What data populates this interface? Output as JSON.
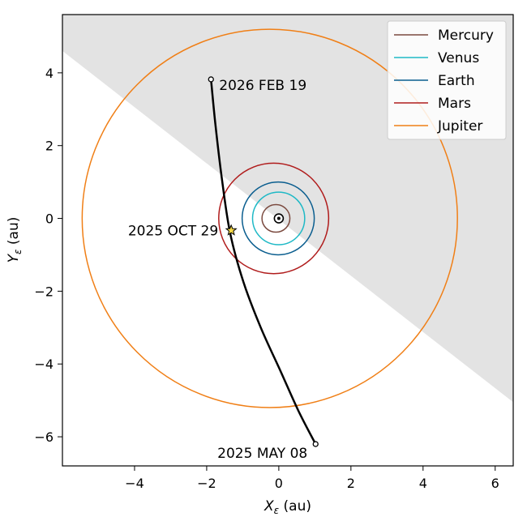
{
  "chart_data": {
    "type": "scatter",
    "title": "",
    "xlabel": "X",
    "xlabel_sub": "ε",
    "xlabel_unit": " (au)",
    "ylabel": "Y",
    "ylabel_sub": "ε",
    "ylabel_unit": " (au)",
    "xlim": [
      -6.0,
      6.5
    ],
    "ylim": [
      -6.8,
      5.6
    ],
    "xticks": [
      -4,
      -2,
      0,
      2,
      4,
      6
    ],
    "yticks": [
      -6,
      -4,
      -2,
      0,
      2,
      4
    ],
    "xtick_labels": [
      "−4",
      "−2",
      "0",
      "2",
      "4",
      "6"
    ],
    "ytick_labels": [
      "−6",
      "−4",
      "−2",
      "0",
      "2",
      "4"
    ],
    "grid": false,
    "legend_position": "top-right",
    "shaded_region": {
      "color": "#e3e3e3",
      "boundary_line": [
        [
          -6.0,
          4.6
        ],
        [
          6.5,
          -5.05
        ]
      ],
      "side": "above"
    },
    "orbits": [
      {
        "name": "Mercury",
        "color": "#7b4a3f",
        "semi_major_axis": 0.387,
        "eccentricity": 0.206
      },
      {
        "name": "Venus",
        "color": "#1fb9c6",
        "semi_major_axis": 0.723,
        "eccentricity": 0.007
      },
      {
        "name": "Earth",
        "color": "#0b5e8f",
        "semi_major_axis": 1.0,
        "eccentricity": 0.017
      },
      {
        "name": "Mars",
        "color": "#b01c1c",
        "semi_major_axis": 1.524,
        "eccentricity": 0.093
      },
      {
        "name": "Jupiter",
        "color": "#f07f16",
        "semi_major_axis": 5.203,
        "eccentricity": 0.048
      }
    ],
    "trajectory": {
      "color": "#000000",
      "points": [
        [
          1.02,
          -6.2
        ],
        [
          0.55,
          -5.3
        ],
        [
          0.05,
          -4.2
        ],
        [
          -0.5,
          -3.0
        ],
        [
          -0.98,
          -1.75
        ],
        [
          -1.35,
          -0.4
        ],
        [
          -1.58,
          1.1
        ],
        [
          -1.76,
          2.6
        ],
        [
          -1.88,
          3.82
        ]
      ]
    },
    "markers": [
      {
        "label": "2025 MAY 08",
        "x": 1.02,
        "y": -6.2,
        "symbol": "circle"
      },
      {
        "label": "2025 OCT 29",
        "x": -1.32,
        "y": -0.33,
        "symbol": "star",
        "color": "#f5d848"
      },
      {
        "label": "2026 FEB 19",
        "x": -1.88,
        "y": 3.82,
        "symbol": "circle"
      }
    ],
    "sun": {
      "x": 0,
      "y": 0,
      "symbol": "⊙"
    }
  }
}
